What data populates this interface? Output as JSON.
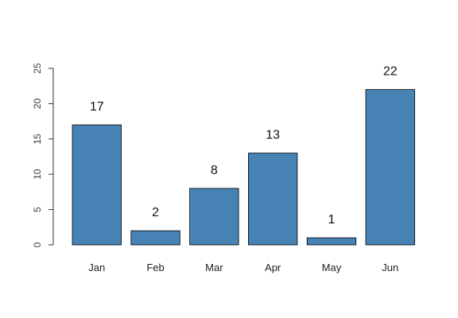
{
  "chart_data": {
    "type": "bar",
    "categories": [
      "Jan",
      "Feb",
      "Mar",
      "Apr",
      "May",
      "Jun"
    ],
    "values": [
      17,
      2,
      8,
      13,
      1,
      22
    ],
    "data_labels": [
      "17",
      "2",
      "8",
      "13",
      "1",
      "22"
    ],
    "title": "",
    "xlabel": "",
    "ylabel": "",
    "ylim": [
      0,
      25
    ],
    "yticks": [
      0,
      5,
      10,
      15,
      20,
      25
    ],
    "ytick_labels": [
      "0",
      "5",
      "10",
      "15",
      "20",
      "25"
    ],
    "grid": false,
    "legend": "none",
    "bar_color": "#4682B4",
    "bar_outline_color": "#000000"
  }
}
